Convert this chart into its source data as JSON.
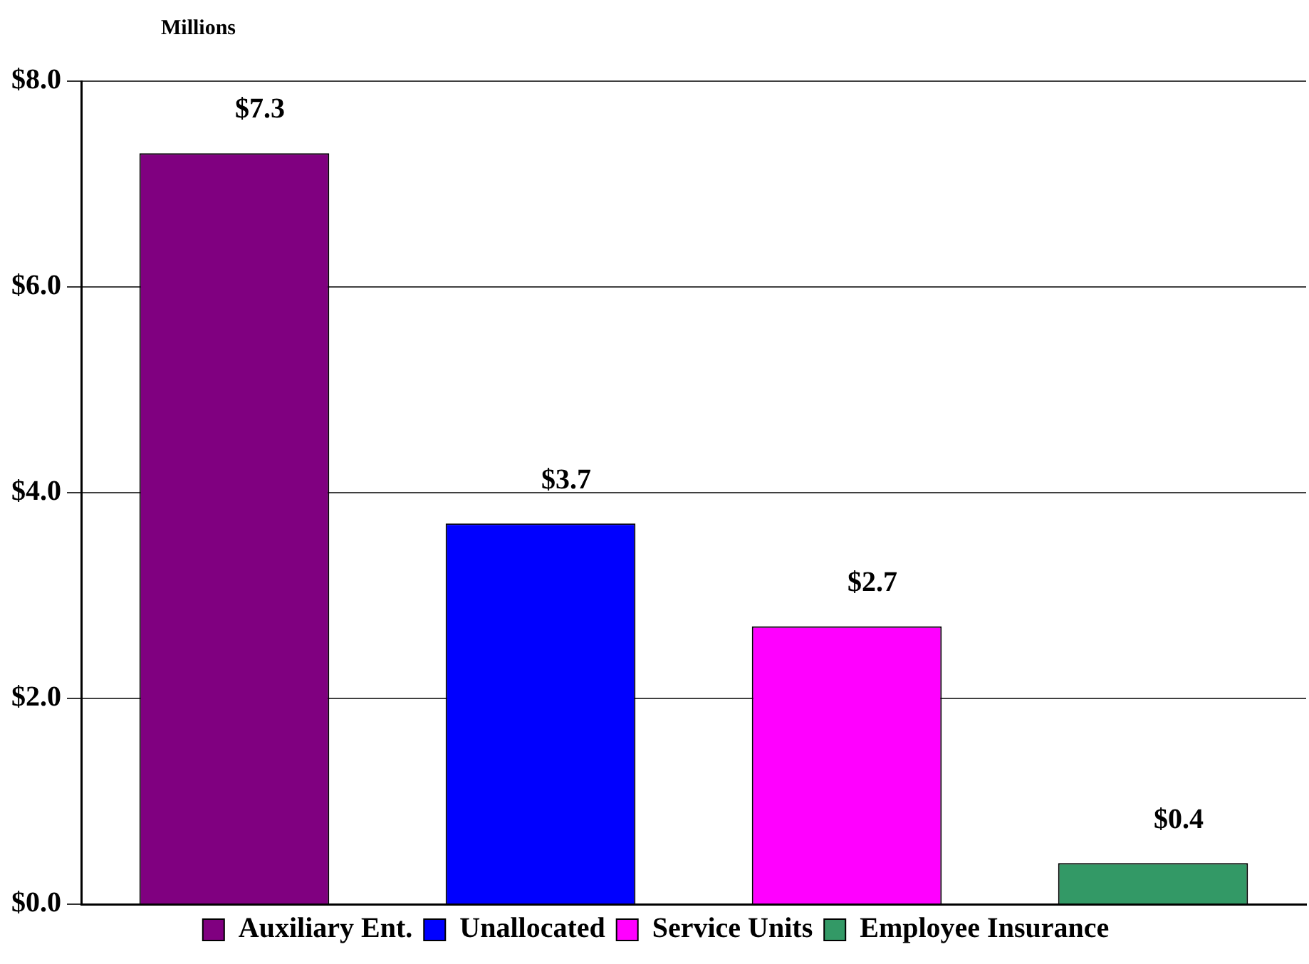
{
  "chart_data": {
    "type": "bar",
    "ylabel": "Millions",
    "categories": [
      null
    ],
    "series": [
      {
        "name": "Auxiliary Ent.",
        "color": "#800080",
        "values": [
          7.3
        ],
        "value_labels": [
          "$7.3"
        ]
      },
      {
        "name": "Unallocated",
        "color": "#0000ff",
        "values": [
          3.7
        ],
        "value_labels": [
          "$3.7"
        ]
      },
      {
        "name": "Service Units",
        "color": "#ff00ff",
        "values": [
          2.7
        ],
        "value_labels": [
          "$2.7"
        ]
      },
      {
        "name": "Employee Insurance",
        "color": "#339966",
        "values": [
          0.4
        ],
        "value_labels": [
          "$0.4"
        ]
      }
    ],
    "ylim": [
      0,
      8
    ],
    "yticks": [
      {
        "value": 0,
        "label": "$0.0"
      },
      {
        "value": 2,
        "label": "$2.0"
      },
      {
        "value": 4,
        "label": "$4.0"
      },
      {
        "value": 6,
        "label": "$6.0"
      },
      {
        "value": 8,
        "label": "$8.0"
      }
    ],
    "grid": "y",
    "legend": "bottom"
  }
}
